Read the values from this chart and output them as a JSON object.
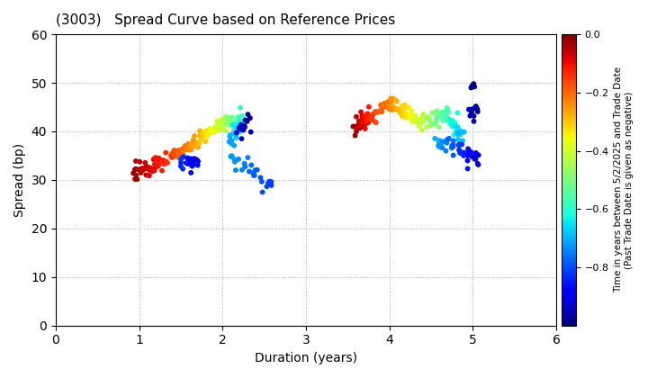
{
  "title": "(3003)   Spread Curve based on Reference Prices",
  "xlabel": "Duration (years)",
  "ylabel": "Spread (bp)",
  "colorbar_label_line1": "Time in years between 5/2/2025 and Trade Date",
  "colorbar_label_line2": "(Past Trade Date is given as negative)",
  "xlim": [
    0,
    6
  ],
  "ylim": [
    0,
    60
  ],
  "xticks": [
    0,
    1,
    2,
    3,
    4,
    5,
    6
  ],
  "yticks": [
    0,
    10,
    20,
    30,
    40,
    50,
    60
  ],
  "cmap": "jet",
  "vmin": -1.0,
  "vmax": 0.0,
  "colorbar_ticks": [
    0.0,
    -0.2,
    -0.4,
    -0.6,
    -0.8
  ],
  "marker_size": 18,
  "background_color": "#ffffff",
  "grid_color": "#aaaaaa"
}
